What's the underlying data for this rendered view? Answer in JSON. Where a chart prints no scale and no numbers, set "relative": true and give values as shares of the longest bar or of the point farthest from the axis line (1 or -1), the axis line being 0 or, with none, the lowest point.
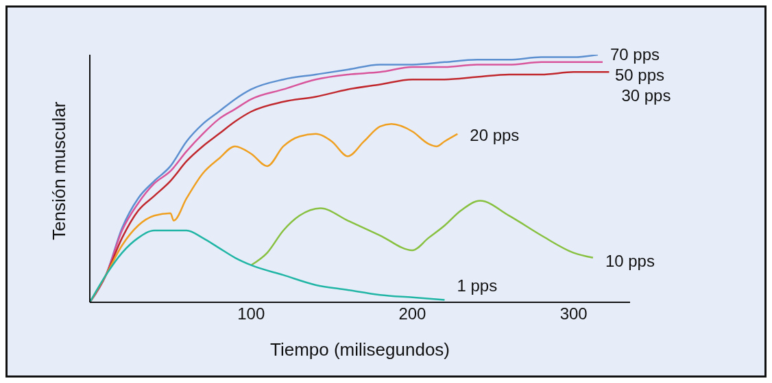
{
  "chart_data": {
    "type": "line",
    "relative": true,
    "xlabel": "Tiempo (milisegundos)",
    "ylabel": "Tensión muscular",
    "xlim": [
      0,
      335
    ],
    "xticks": [
      100,
      200,
      300
    ],
    "grid": false,
    "legend": false,
    "marker": "none",
    "line_style": "solid",
    "series": [
      {
        "name": "70 pps",
        "color": "#5b8fd0",
        "x": [
          0,
          10,
          20,
          30,
          40,
          50,
          60,
          70,
          80,
          90,
          100,
          120,
          140,
          160,
          180,
          200,
          220,
          240,
          260,
          280,
          300,
          315
        ],
        "values": [
          0,
          0.11,
          0.3,
          0.42,
          0.49,
          0.55,
          0.65,
          0.72,
          0.77,
          0.82,
          0.86,
          0.9,
          0.92,
          0.94,
          0.96,
          0.96,
          0.97,
          0.98,
          0.98,
          0.99,
          0.99,
          1
        ]
      },
      {
        "name": "50 pps",
        "color": "#d9559b",
        "x": [
          0,
          10,
          20,
          30,
          40,
          50,
          60,
          70,
          80,
          90,
          100,
          120,
          140,
          160,
          180,
          200,
          220,
          240,
          260,
          280,
          300,
          318
        ],
        "values": [
          0,
          0.11,
          0.29,
          0.4,
          0.48,
          0.53,
          0.61,
          0.68,
          0.74,
          0.78,
          0.82,
          0.86,
          0.9,
          0.92,
          0.93,
          0.95,
          0.95,
          0.96,
          0.96,
          0.97,
          0.97,
          0.97
        ]
      },
      {
        "name": "30 pps",
        "color": "#c0282d",
        "x": [
          0,
          10,
          20,
          30,
          40,
          50,
          60,
          70,
          80,
          90,
          100,
          120,
          140,
          160,
          180,
          200,
          220,
          240,
          260,
          280,
          300,
          322
        ],
        "values": [
          0,
          0.11,
          0.26,
          0.37,
          0.43,
          0.49,
          0.57,
          0.63,
          0.68,
          0.73,
          0.77,
          0.81,
          0.83,
          0.86,
          0.88,
          0.9,
          0.9,
          0.91,
          0.92,
          0.92,
          0.93,
          0.93
        ]
      },
      {
        "name": "20 pps",
        "color": "#f0a020",
        "x": [
          0,
          10,
          20,
          30,
          40,
          50,
          52,
          60,
          70,
          80,
          90,
          100,
          110,
          120,
          130,
          140,
          150,
          160,
          170,
          180,
          187,
          200,
          210,
          215,
          220,
          228
        ],
        "values": [
          0,
          0.11,
          0.23,
          0.31,
          0.35,
          0.36,
          0.33,
          0.42,
          0.52,
          0.58,
          0.63,
          0.6,
          0.55,
          0.63,
          0.67,
          0.68,
          0.65,
          0.59,
          0.65,
          0.71,
          0.72,
          0.69,
          0.64,
          0.63,
          0.65,
          0.68
        ]
      },
      {
        "name": "10 pps",
        "color": "#88c040",
        "x": [
          100,
          110,
          120,
          130,
          143,
          160,
          180,
          200,
          210,
          220,
          230,
          242,
          260,
          280,
          300,
          312
        ],
        "values": [
          0.15,
          0.2,
          0.29,
          0.35,
          0.38,
          0.33,
          0.27,
          0.21,
          0.26,
          0.31,
          0.37,
          0.41,
          0.35,
          0.27,
          0.2,
          0.18
        ]
      },
      {
        "name": "1 pps",
        "color": "#20b5a5",
        "x": [
          0,
          10,
          20,
          30,
          40,
          50,
          60,
          70,
          80,
          90,
          100,
          120,
          140,
          160,
          180,
          200,
          220
        ],
        "values": [
          0,
          0.11,
          0.2,
          0.26,
          0.29,
          0.29,
          0.29,
          0.26,
          0.22,
          0.18,
          0.15,
          0.11,
          0.07,
          0.05,
          0.03,
          0.02,
          0.01
        ]
      }
    ]
  }
}
